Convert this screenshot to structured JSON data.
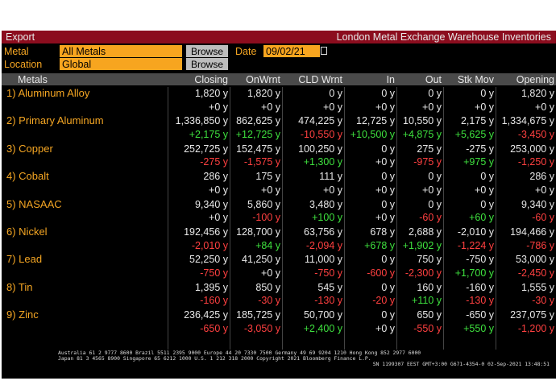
{
  "header": {
    "export": "Export",
    "title": "London Metal Exchange Warehouse Inventories"
  },
  "filters": {
    "metal_label": "Metal",
    "metal_value": "All Metals",
    "browse": "Browse",
    "date_label": "Date",
    "date_value": "09/02/21",
    "location_label": "Location",
    "location_value": "Global",
    "browse2": "Browse"
  },
  "table": {
    "columns": [
      "Metals",
      "Closing",
      "OnWrnt",
      "CLD Wrnt",
      "In",
      "Out",
      "Stk Mov",
      "Opening"
    ],
    "rows": [
      {
        "name": "1) Aluminum Alloy",
        "values": [
          "1,820 y",
          "1,820 y",
          "0 y",
          "0 y",
          "0 y",
          "0 y",
          "1,820 y"
        ],
        "changes": [
          "+0 y",
          "+0 y",
          "+0 y",
          "+0 y",
          "+0 y",
          "+0 y",
          "+0 y"
        ]
      },
      {
        "name": "2) Primary Aluminum",
        "values": [
          "1,336,850 y",
          "862,625 y",
          "474,225 y",
          "12,725 y",
          "10,550 y",
          "2,175 y",
          "1,334,675 y"
        ],
        "changes": [
          "+2,175 y",
          "+12,725 y",
          "-10,550 y",
          "+10,500 y",
          "+4,875 y",
          "+5,625 y",
          "-3,450 y"
        ]
      },
      {
        "name": "3) Copper",
        "values": [
          "252,725 y",
          "152,475 y",
          "100,250 y",
          "0 y",
          "275 y",
          "-275 y",
          "253,000 y"
        ],
        "changes": [
          "-275 y",
          "-1,575 y",
          "+1,300 y",
          "+0 y",
          "-975 y",
          "+975 y",
          "-1,250 y"
        ]
      },
      {
        "name": "4) Cobalt",
        "values": [
          "286 y",
          "175 y",
          "111 y",
          "0 y",
          "0 y",
          "0 y",
          "286 y"
        ],
        "changes": [
          "+0 y",
          "+0 y",
          "+0 y",
          "+0 y",
          "+0 y",
          "+0 y",
          "+0 y"
        ]
      },
      {
        "name": "5) NASAAC",
        "values": [
          "9,340 y",
          "5,860 y",
          "3,480 y",
          "0 y",
          "0 y",
          "0 y",
          "9,340 y"
        ],
        "changes": [
          "+0 y",
          "-100 y",
          "+100 y",
          "+0 y",
          "-60 y",
          "+60 y",
          "-60 y"
        ]
      },
      {
        "name": "6) Nickel",
        "values": [
          "192,456 y",
          "128,700 y",
          "63,756 y",
          "678 y",
          "2,688 y",
          "-2,010 y",
          "194,466 y"
        ],
        "changes": [
          "-2,010 y",
          "+84 y",
          "-2,094 y",
          "+678 y",
          "+1,902 y",
          "-1,224 y",
          "-786 y"
        ]
      },
      {
        "name": "7) Lead",
        "values": [
          "52,250 y",
          "41,250 y",
          "11,000 y",
          "0 y",
          "750 y",
          "-750 y",
          "53,000 y"
        ],
        "changes": [
          "-750 y",
          "+0 y",
          "-750 y",
          "-600 y",
          "-2,300 y",
          "+1,700 y",
          "-2,450 y"
        ]
      },
      {
        "name": "8) Tin",
        "values": [
          "1,395 y",
          "850 y",
          "545 y",
          "0 y",
          "160 y",
          "-160 y",
          "1,555 y"
        ],
        "changes": [
          "-160 y",
          "-30 y",
          "-130 y",
          "-20 y",
          "+110 y",
          "-130 y",
          "-30 y"
        ]
      },
      {
        "name": "9) Zinc",
        "values": [
          "236,425 y",
          "185,725 y",
          "50,700 y",
          "0 y",
          "650 y",
          "-650 y",
          "237,075 y"
        ],
        "changes": [
          "-650 y",
          "-3,050 y",
          "+2,400 y",
          "+0 y",
          "-550 y",
          "+550 y",
          "-1,200 y"
        ]
      }
    ]
  },
  "footer": {
    "line1": "Australia 61 2 9777 8600 Brazil 5511 2395 9000 Europe 44 20 7330 7500 Germany 49 69 9204 1210 Hong Kong 852 2977 6000",
    "line2": "Japan 81 3 4565 8900        Singapore 65 6212 1000        U.S. 1 212 318 2000        Copyright 2021 Bloomberg Finance L.P.",
    "line3": "SN 1199307 EEST GMT+3:00 G671-4354-0 02-Sep-2021 13:48:51"
  }
}
